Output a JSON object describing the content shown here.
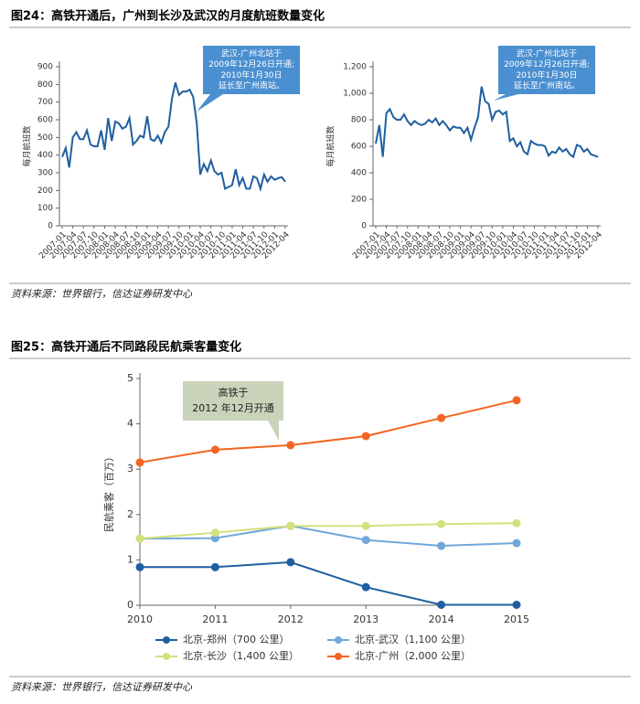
{
  "figures": [
    {
      "title": "图24：高铁开通后，广州到长沙及武汉的月度航班数量变化",
      "source": "资料来源：世界银行，信达证券研发中心"
    },
    {
      "title": "图25：高铁开通后不同路段民航乘客量变化",
      "source": "资料来源：世界银行，信达证券研发中心"
    }
  ],
  "chart_data": [
    {
      "type": "line",
      "y_label": "每月航班数",
      "annotation": [
        "武汉-广州北站于",
        "2009年12月26日开通;",
        "2010年1月30日",
        "延长至广州南站。"
      ],
      "categories": [
        "2007-01",
        null,
        null,
        "2007-04",
        null,
        null,
        "2007-07",
        null,
        null,
        "2007-10",
        null,
        null,
        "2008-01",
        null,
        null,
        "2008-04",
        null,
        null,
        "2008-07",
        null,
        null,
        "2008-10",
        null,
        null,
        "2009-01",
        null,
        null,
        "2009-04",
        null,
        null,
        "2009-07",
        null,
        null,
        "2009-10",
        null,
        null,
        "2010-01",
        null,
        null,
        "2010-04",
        null,
        null,
        "2010-07",
        null,
        null,
        "2010-10",
        null,
        null,
        "2011-01",
        null,
        null,
        "2011-04",
        null,
        null,
        "2011-07",
        null,
        null,
        "2011-10",
        null,
        null,
        "2012-01",
        null,
        null,
        "2012-04"
      ],
      "series": [
        {
          "color": "#1f5fa0",
          "values": [
            390,
            440,
            330,
            500,
            530,
            490,
            490,
            540,
            460,
            450,
            450,
            540,
            430,
            610,
            480,
            590,
            580,
            550,
            560,
            610,
            460,
            480,
            510,
            500,
            620,
            490,
            480,
            510,
            470,
            530,
            560,
            720,
            810,
            740,
            760,
            760,
            770,
            730,
            580,
            290,
            350,
            310,
            370,
            310,
            290,
            300,
            210,
            220,
            230,
            320,
            230,
            270,
            210,
            210,
            280,
            270,
            210,
            290,
            250,
            280,
            260,
            270,
            275,
            250
          ]
        }
      ],
      "ylim": [
        0,
        900
      ],
      "yticks": [
        0,
        100,
        200,
        300,
        400,
        500,
        600,
        700,
        800,
        900
      ]
    },
    {
      "type": "line",
      "y_label": "每月航班数",
      "annotation": [
        "武汉-广州北站于",
        "2009年12月26日开通;",
        "2010年1月30日",
        "延长至广州南站。"
      ],
      "categories": [
        "2007-01",
        null,
        null,
        "2007-04",
        null,
        null,
        "2007-07",
        null,
        null,
        "2007-10",
        null,
        null,
        "2008-01",
        null,
        null,
        "2008-04",
        null,
        null,
        "2008-07",
        null,
        null,
        "2008-10",
        null,
        null,
        "2009-01",
        null,
        null,
        "2009-04",
        null,
        null,
        "2009-07",
        null,
        null,
        "2009-10",
        null,
        null,
        "2010-01",
        null,
        null,
        "2010-04",
        null,
        null,
        "2010-07",
        null,
        null,
        "2010-10",
        null,
        null,
        "2011-01",
        null,
        null,
        "2011-04",
        null,
        null,
        "2011-07",
        null,
        null,
        "2011-10",
        null,
        null,
        "2012-01",
        null,
        null,
        "2012-04"
      ],
      "series": [
        {
          "color": "#1f5fa0",
          "values": [
            620,
            760,
            520,
            850,
            880,
            820,
            800,
            800,
            840,
            790,
            760,
            790,
            770,
            760,
            770,
            800,
            780,
            810,
            760,
            790,
            760,
            720,
            750,
            740,
            740,
            700,
            740,
            650,
            740,
            820,
            1050,
            940,
            920,
            800,
            860,
            870,
            840,
            860,
            640,
            660,
            600,
            630,
            560,
            540,
            640,
            620,
            610,
            610,
            600,
            530,
            560,
            550,
            590,
            560,
            580,
            540,
            520,
            610,
            600,
            560,
            580,
            540,
            530,
            520
          ]
        }
      ],
      "ylim": [
        0,
        1200
      ],
      "yticks": [
        0,
        200,
        400,
        600,
        800,
        {
          "value": 1000,
          "label": "1,000"
        },
        {
          "value": 1200,
          "label": "1,200"
        }
      ]
    },
    {
      "type": "line",
      "y_label": "民航乘客（百万）",
      "annotation": [
        "高铁于",
        "2012 年12月开通"
      ],
      "x": [
        2010,
        2011,
        2012,
        2013,
        2014,
        2015
      ],
      "series": [
        {
          "name": "北京-郑州（700 公里）",
          "color": "#1f5fa0",
          "values": [
            0.84,
            0.84,
            0.95,
            0.4,
            0.01,
            0.01
          ]
        },
        {
          "name": "北京-武汉（1,100 公里）",
          "color": "#72a7da",
          "values": [
            1.47,
            1.48,
            1.75,
            1.44,
            1.31,
            1.37
          ]
        },
        {
          "name": "北京-长沙（1,400 公里）",
          "color": "#d3e07c",
          "values": [
            1.47,
            1.6,
            1.75,
            1.75,
            1.79,
            1.81
          ]
        },
        {
          "name": "北京-广州（2,000 公里）",
          "color": "#f26522",
          "values": [
            3.15,
            3.43,
            3.53,
            3.73,
            4.13,
            4.52
          ]
        }
      ],
      "xlim": [
        2010,
        2015
      ],
      "xticks": [
        2010,
        2011,
        2012,
        2013,
        2014,
        2015
      ],
      "ylim": [
        0,
        5
      ],
      "yticks": [
        0,
        1,
        2,
        3,
        4,
        5
      ]
    }
  ]
}
